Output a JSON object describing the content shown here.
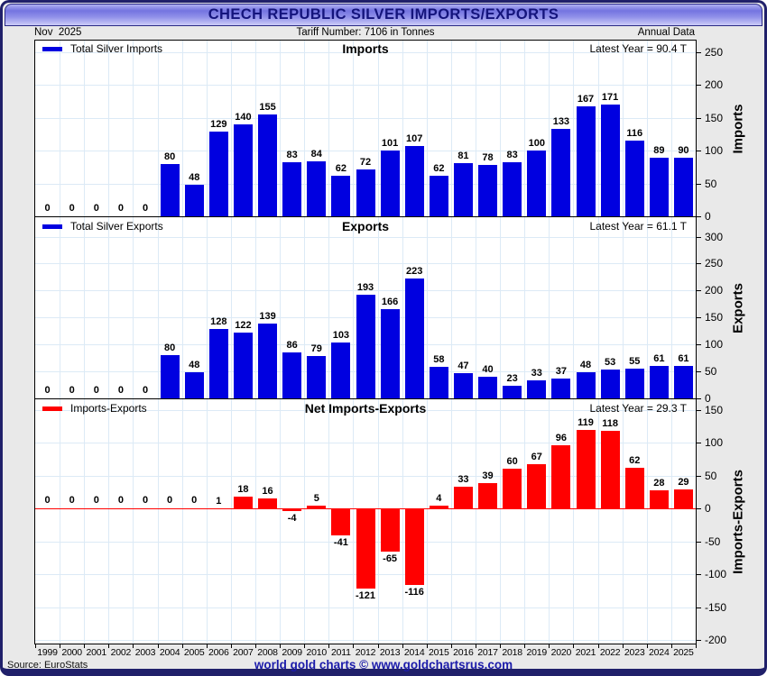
{
  "window": {
    "title": "CHECH REPUBLIC SILVER IMPORTS/EXPORTS"
  },
  "subheader": {
    "left": "Nov  2025",
    "center": "Tariff Number: 7106 in Tonnes",
    "right": "Annual Data"
  },
  "footer": {
    "source": "Source: EuroStats",
    "center": "world gold charts © www.goldchartsrus.com"
  },
  "colors": {
    "import_bar": "#0000e0",
    "export_bar": "#0000e0",
    "net_bar": "#ff0000",
    "zero_line": "#ff0000",
    "grid": "#dceaf6",
    "title_text": "#14147c",
    "footer_text": "#1b1baa"
  },
  "years": [
    "1999",
    "2000",
    "2001",
    "2002",
    "2003",
    "2004",
    "2005",
    "2006",
    "2007",
    "2008",
    "2009",
    "2010",
    "2011",
    "2012",
    "2013",
    "2014",
    "2015",
    "2016",
    "2017",
    "2018",
    "2019",
    "2020",
    "2021",
    "2022",
    "2023",
    "2024",
    "2025"
  ],
  "chart_data": [
    {
      "type": "bar",
      "title": "Imports",
      "legend": "Total Silver Imports",
      "latest_label": "Latest Year = 90.4 T",
      "axis_label": "Imports",
      "bar_color": "#0000e0",
      "ylim": [
        0,
        250
      ],
      "yticks": [
        0,
        50,
        100,
        150,
        200,
        250
      ],
      "values": [
        0,
        0,
        0,
        0,
        0,
        80,
        48,
        129,
        140,
        155,
        83,
        84,
        62,
        72,
        101,
        107,
        62,
        81,
        78,
        83,
        100,
        133,
        167,
        171,
        116,
        89,
        90
      ]
    },
    {
      "type": "bar",
      "title": "Exports",
      "legend": "Total Silver Exports",
      "latest_label": "Latest Year = 61.1 T",
      "axis_label": "Exports",
      "bar_color": "#0000e0",
      "ylim": [
        0,
        300
      ],
      "yticks": [
        0,
        50,
        100,
        150,
        200,
        250,
        300
      ],
      "values": [
        0,
        0,
        0,
        0,
        0,
        80,
        48,
        128,
        122,
        139,
        86,
        79,
        103,
        193,
        166,
        223,
        58,
        47,
        40,
        23,
        33,
        37,
        48,
        53,
        55,
        61,
        61
      ]
    },
    {
      "type": "bar",
      "title": "Net Imports-Exports",
      "legend": "Imports-Exports",
      "latest_label": "Latest Year = 29.3 T",
      "axis_label": "Imports-Exports",
      "bar_color": "#ff0000",
      "ylim": [
        -200,
        150
      ],
      "yticks": [
        -200,
        -150,
        -100,
        -50,
        0,
        50,
        100,
        150
      ],
      "values": [
        0,
        0,
        0,
        0,
        0,
        0,
        0,
        1,
        18,
        16,
        -4,
        5,
        -41,
        -121,
        -65,
        -116,
        4,
        33,
        39,
        60,
        67,
        96,
        119,
        118,
        62,
        28,
        29
      ]
    }
  ]
}
